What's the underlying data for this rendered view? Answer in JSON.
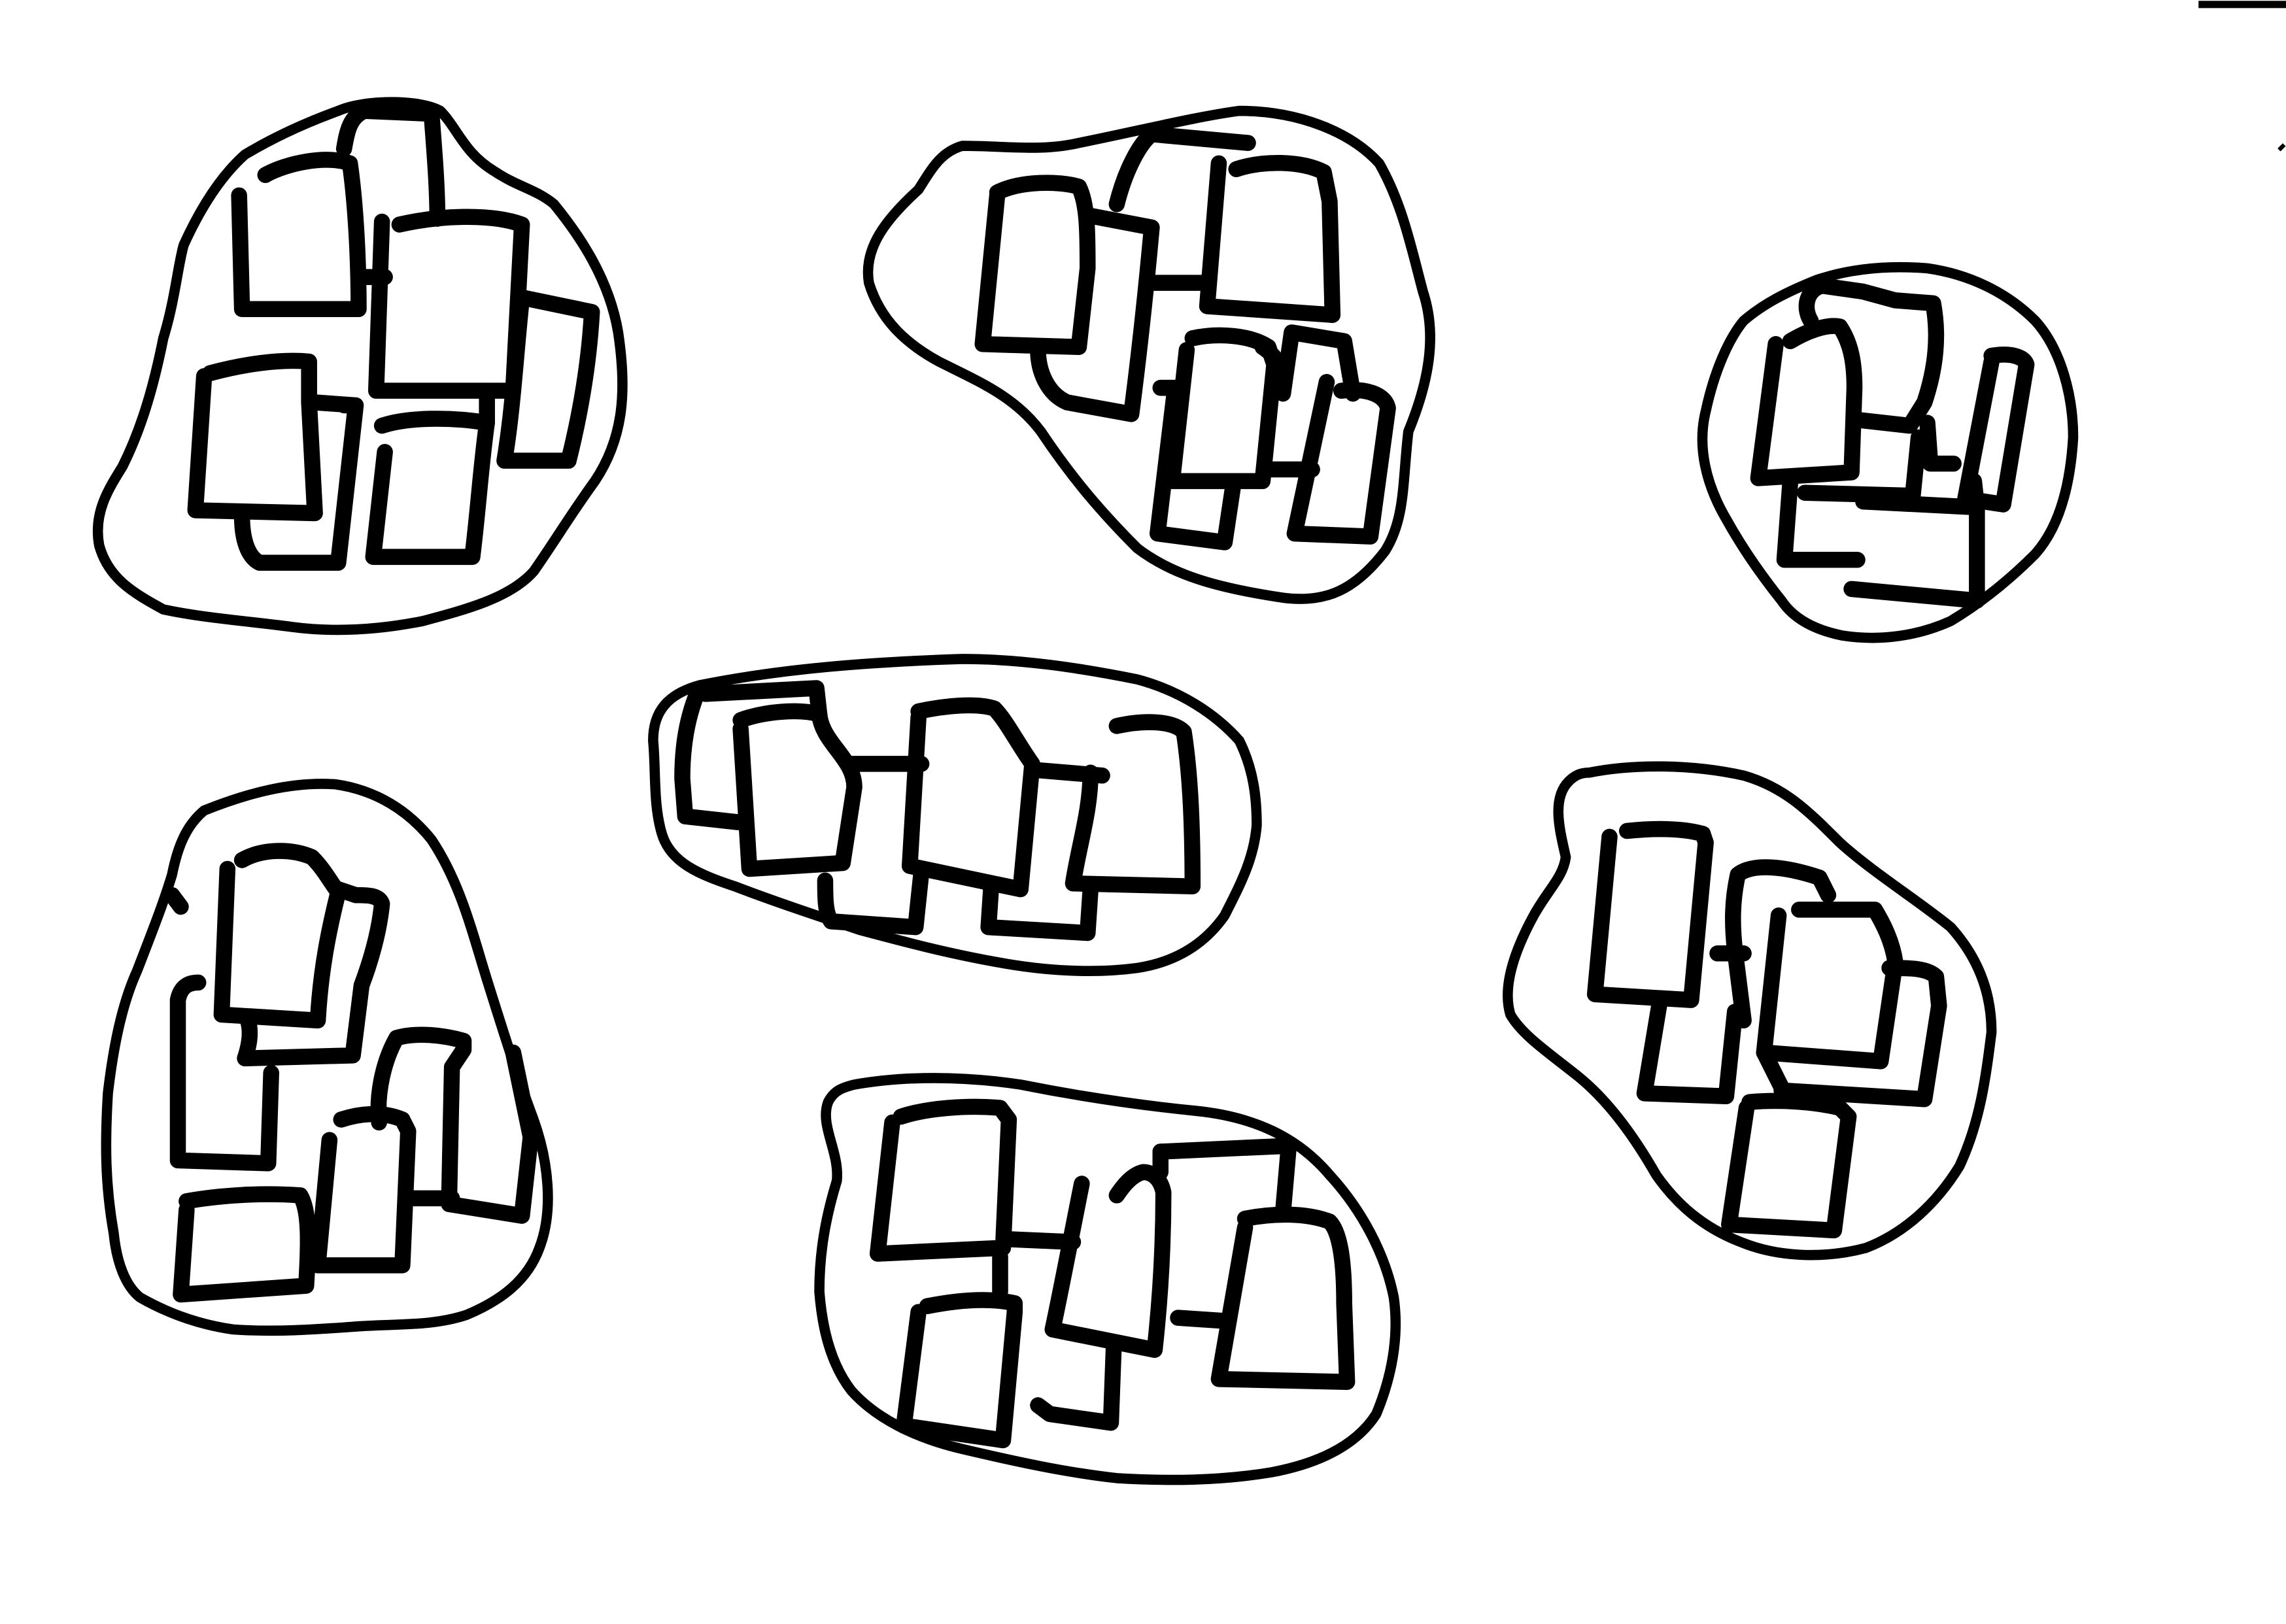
{
  "drawing": {
    "kind": "hand-drawn sketch",
    "ink_color": "#000000",
    "background_color": "#ffffff",
    "groups": [
      {
        "id": "group-top-left",
        "box_count": 6
      },
      {
        "id": "group-top-center",
        "box_count": 7
      },
      {
        "id": "group-top-right",
        "box_count": 5
      },
      {
        "id": "group-middle",
        "box_count": 6
      },
      {
        "id": "group-bottom-left",
        "box_count": 7
      },
      {
        "id": "group-bottom-center",
        "box_count": 6
      },
      {
        "id": "group-right-middle",
        "box_count": 6
      }
    ]
  }
}
